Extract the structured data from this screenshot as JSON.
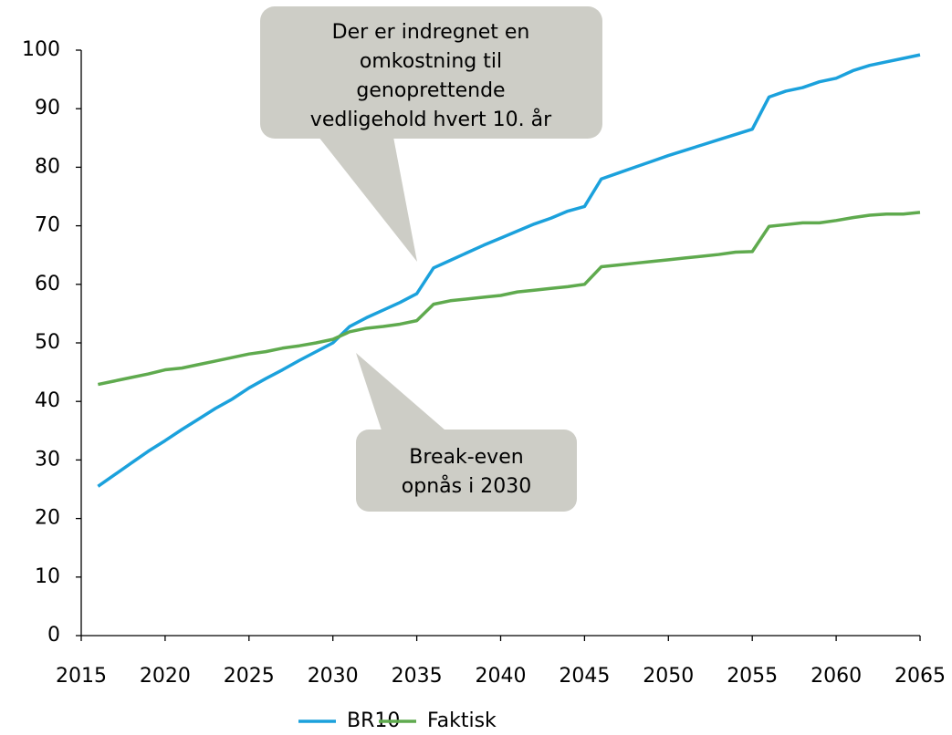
{
  "chart_data": {
    "type": "line",
    "x": [
      2016,
      2017,
      2018,
      2019,
      2020,
      2021,
      2022,
      2023,
      2024,
      2025,
      2026,
      2027,
      2028,
      2029,
      2030,
      2031,
      2032,
      2033,
      2034,
      2035,
      2036,
      2037,
      2038,
      2039,
      2040,
      2041,
      2042,
      2043,
      2044,
      2045,
      2046,
      2047,
      2048,
      2049,
      2050,
      2051,
      2052,
      2053,
      2054,
      2055,
      2056,
      2057,
      2058,
      2059,
      2060,
      2061,
      2062,
      2063,
      2064,
      2065
    ],
    "series": [
      {
        "name": "BR10",
        "color": "#1ba1dc",
        "values": [
          25.5,
          27.5,
          29.5,
          31.5,
          33.3,
          35.2,
          37,
          38.8,
          40.4,
          42.3,
          43.9,
          45.4,
          47,
          48.5,
          50,
          52.8,
          54.3,
          55.6,
          56.9,
          58.4,
          62.8,
          64.1,
          65.4,
          66.7,
          67.9,
          69.1,
          70.3,
          71.3,
          72.5,
          73.3,
          78,
          79,
          80,
          81,
          82,
          82.9,
          83.8,
          84.7,
          85.6,
          86.5,
          92,
          93,
          93.6,
          94.6,
          95.2,
          96.5,
          97.4,
          98,
          98.6,
          99.2
        ]
      },
      {
        "name": "Faktisk",
        "color": "#5faa4e",
        "values": [
          42.9,
          43.5,
          44.1,
          44.7,
          45.4,
          45.7,
          46.3,
          46.9,
          47.5,
          48.1,
          48.5,
          49.1,
          49.5,
          50,
          50.6,
          51.9,
          52.5,
          52.8,
          53.2,
          53.8,
          56.6,
          57.2,
          57.5,
          57.8,
          58.1,
          58.7,
          59,
          59.3,
          59.6,
          60,
          63,
          63.3,
          63.6,
          63.9,
          64.2,
          64.5,
          64.8,
          65.1,
          65.5,
          65.6,
          69.9,
          70.2,
          70.5,
          70.5,
          70.9,
          71.4,
          71.8,
          72,
          72,
          72.3
        ]
      }
    ],
    "xlim": [
      2015,
      2065
    ],
    "xticks": [
      2015,
      2020,
      2025,
      2030,
      2035,
      2040,
      2045,
      2050,
      2055,
      2060,
      2065
    ],
    "ylim": [
      0,
      100
    ],
    "yticks": [
      0,
      10,
      20,
      30,
      40,
      50,
      60,
      70,
      80,
      90,
      100
    ],
    "grid": false,
    "legend": "bottom",
    "annotations": [
      {
        "lines": [
          "Der er indregnet en",
          "omkostning til",
          "genoprettende",
          "vedligehold hvert 10. år"
        ]
      },
      {
        "lines": [
          "Break-even",
          "opnås i 2030"
        ]
      }
    ]
  }
}
